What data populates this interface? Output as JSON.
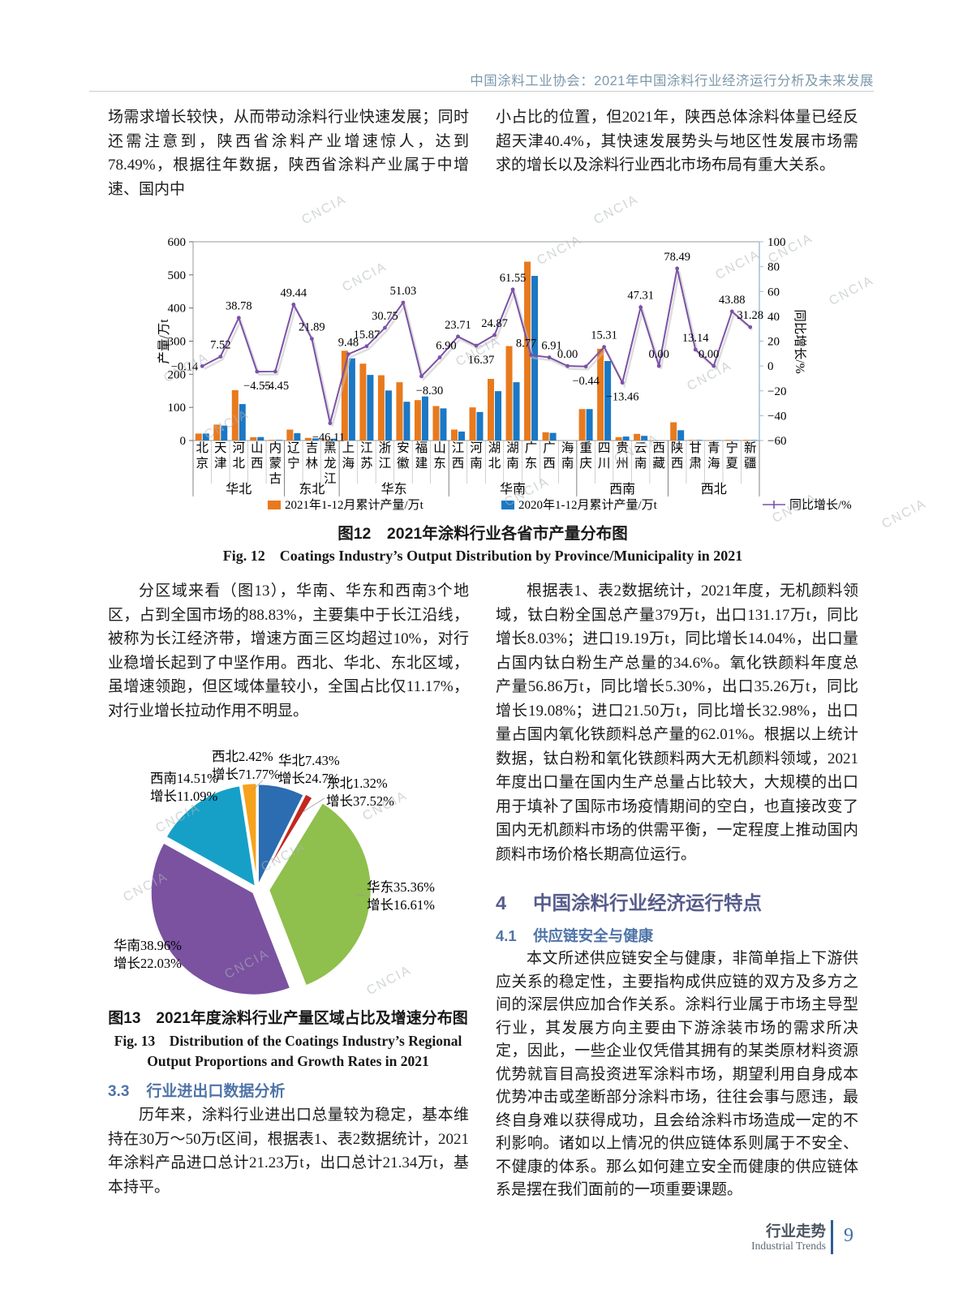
{
  "header": {
    "title": "中国涂料工业协会：2021年中国涂料行业经济运行分析及未来发展"
  },
  "watermark": "CNCIA",
  "top_columns": {
    "left": "场需求增长较快，从而带动涂料行业快速发展；同时还需注意到，陕西省涂料产业增速惊人，达到78.49%，根据往年数据，陕西省涂料产业属于中增速、国内中",
    "right": "小占比的位置，但2021年，陕西总体涂料体量已经反超天津40.4%，其快速发展势头与地区性发展市场需求的增长以及涂料行业西北市场布局有重大关系。"
  },
  "fig12": {
    "caption_cn": "图12　2021年涂料行业各省市产量分布图",
    "caption_en": "Fig. 12　Coatings Industry’s Output Distribution by Province/Municipality in 2021"
  },
  "fig13": {
    "caption_cn": "图13　2021年度涂料行业产量区域占比及增速分布图",
    "caption_en1": "Fig. 13　Distribution of the Coatings Industry’s Regional",
    "caption_en2": "Output Proportions and Growth Rates in 2021"
  },
  "left_column": {
    "region_para": "分区域来看（图13），华南、华东和西南3个地区，占到全国市场的88.83%，主要集中于长江沿线，被称为长江经济带，增速方面三区均超过10%，对行业稳增长起到了中坚作用。西北、华北、东北区域，虽增速领跑，但区域体量较小，全国占比仅11.17%，对行业增长拉动作用不明显。",
    "sec33_num": "3.3",
    "sec33_title": "行业进出口数据分析",
    "sec33_para": "历年来，涂料行业进出口总量较为稳定，基本维持在30万～50万t区间，根据表1、表2数据统计，2021年涂料产品进口总计21.23万t，出口总计21.34万t，基本持平。"
  },
  "right_column": {
    "pigment_para": "根据表1、表2数据统计，2021年度，无机颜料领域，钛白粉全国总产量379万t，出口131.17万t，同比增长8.03%；进口19.19万t，同比增长14.04%，出口量占国内钛白粉生产总量的34.6%。氧化铁颜料年度总产量56.86万t，同比增长5.30%，出口35.26万t，同比增长19.08%；进口21.50万t，同比增长32.98%，出口量占国内氧化铁颜料总产量的62.01%。根据以上统计数据，钛白粉和氧化铁颜料两大无机颜料领域，2021年度出口量在国内生产总量占比较大，大规模的出口用于填补了国际市场疫情期间的空白，也直接改变了国内无机颜料市场的供需平衡，一定程度上推动国内颜料市场价格长期高位运行。",
    "sec4_num": "4",
    "sec4_title": "中国涂料行业经济运行特点",
    "sec41_num": "4.1",
    "sec41_title": "供应链安全与健康",
    "supply_para": "本文所述供应链安全与健康，非简单指上下游供应关系的稳定性，主要指构成供应链的双方及多方之间的深层供应加合作关系。涂料行业属于市场主导型行业，其发展方向主要由下游涂装市场的需求所决定，因此，一些企业仅凭借其拥有的某类原材料资源优势就盲目高投资进军涂料市场，期望利用自身成本优势冲击或垄断部分涂料市场，往往会事与愿违，最终自身难以获得成功，且会给涂料市场造成一定的不利影响。诸如以上情况的供应链体系则属于不安全、不健康的体系。那么如何建立安全而健康的供应链体系是摆在我们面前的一项重要课题。"
  },
  "footer": {
    "label_cn": "行业走势",
    "label_en": "Industrial Trends",
    "page": "9"
  },
  "chart_data": [
    {
      "type": "bar",
      "title": "图12 2021年涂料行业各省市产量分布图",
      "categories": [
        "北京",
        "天津",
        "河北",
        "山西",
        "内蒙古",
        "辽宁",
        "吉林",
        "黑龙江",
        "上海",
        "江苏",
        "浙江",
        "安徽",
        "福建",
        "山东",
        "江西",
        "河南",
        "湖北",
        "湖南",
        "广东",
        "广西",
        "海南",
        "重庆",
        "四川",
        "贵州",
        "云南",
        "西藏",
        "陕西",
        "甘肃",
        "青海",
        "宁夏",
        "新疆"
      ],
      "regions": [
        {
          "name": "华北",
          "span": 5
        },
        {
          "name": "东北",
          "span": 3
        },
        {
          "name": "华东",
          "span": 6
        },
        {
          "name": "华南",
          "span": 7
        },
        {
          "name": "西南",
          "span": 5
        },
        {
          "name": "西北",
          "span": 5
        }
      ],
      "series": [
        {
          "name": "2021年1-12月累计产量/万t",
          "color": "#E87A1E",
          "values": [
            21,
            48,
            152,
            10,
            2,
            33,
            8,
            3,
            271,
            232,
            197,
            176,
            122,
            104,
            33,
            100,
            186,
            285,
            540,
            25,
            0,
            95,
            277,
            10,
            20,
            0,
            55,
            2,
            1,
            2,
            2
          ]
        },
        {
          "name": "2020年1-12月累计产量/万t",
          "color": "#1B78C5",
          "values": [
            21,
            45,
            110,
            10.5,
            2,
            22,
            6.5,
            5.5,
            248,
            198,
            151,
            117,
            133,
            97,
            27,
            86,
            149,
            176,
            497,
            23,
            0,
            95,
            240,
            12,
            14,
            0,
            31,
            1.8,
            1,
            1.5,
            1.5
          ]
        }
      ],
      "line": {
        "name": "同比增长/%",
        "color": "#7B52A6",
        "values": [
          -0.14,
          7.52,
          38.78,
          -4.55,
          -4.45,
          49.44,
          21.89,
          -46.11,
          9.48,
          15.87,
          30.75,
          51.03,
          -8.3,
          6.9,
          23.71,
          16.37,
          24.87,
          61.55,
          8.77,
          6.91,
          0,
          -0.44,
          15.31,
          -13.46,
          47.31,
          0,
          78.49,
          13.14,
          0,
          43.88,
          31.28
        ],
        "labels": [
          "−0.14",
          "7.52",
          "38.78",
          "−4.55",
          "−4.45",
          "49.44",
          "21.89",
          "−46.11",
          "9.48",
          "15.87",
          "30.75",
          "51.03",
          "−8.30",
          "6.90",
          "23.71",
          "16.37",
          "24.87",
          "61.55",
          "8.77",
          "6.91",
          "0.00",
          "−0.44",
          "15.31",
          "−13.46",
          "47.31",
          "0.00",
          "78.49",
          "13.14",
          "0.00",
          "43.88",
          "31.28"
        ]
      },
      "axes": {
        "left": {
          "label": "产量/万t",
          "min": 0,
          "max": 600,
          "ticks": [
            "0",
            "100",
            "200",
            "300",
            "400",
            "500",
            "600"
          ]
        },
        "right": {
          "label": "同比增长/%",
          "min": -60,
          "max": 100,
          "ticks": [
            "−60",
            "−40",
            "−20",
            "0",
            "20",
            "40",
            "60",
            "80",
            "100"
          ]
        }
      },
      "legend_position": "bottom"
    },
    {
      "type": "pie",
      "title": "图13 2021年度涂料行业产量区域占比及增速分布图",
      "slices": [
        {
          "name": "华北",
          "value": 7.43,
          "growth": 24.7,
          "label": [
            "华北7.43%",
            "增长24.7%"
          ],
          "color": "#2C6CB0"
        },
        {
          "name": "东北",
          "value": 1.32,
          "growth": 37.52,
          "label": [
            "东北1.32%",
            "增长37.52%"
          ],
          "color": "#C3271F"
        },
        {
          "name": "华东",
          "value": 35.36,
          "growth": 16.61,
          "label": [
            "华东35.36%",
            "增长16.61%"
          ],
          "color": "#8FBF4D"
        },
        {
          "name": "华南",
          "value": 38.96,
          "growth": 22.03,
          "label": [
            "华南38.96%",
            "增长22.03%"
          ],
          "color": "#7A52A0"
        },
        {
          "name": "西南",
          "value": 14.51,
          "growth": 11.09,
          "label": [
            "西南14.51%",
            "增长11.09%"
          ],
          "color": "#16A0C8"
        },
        {
          "name": "西北",
          "value": 2.42,
          "growth": 71.77,
          "label": [
            "西北2.42%",
            "增长71.77%"
          ],
          "color": "#F7A21C"
        }
      ]
    }
  ]
}
